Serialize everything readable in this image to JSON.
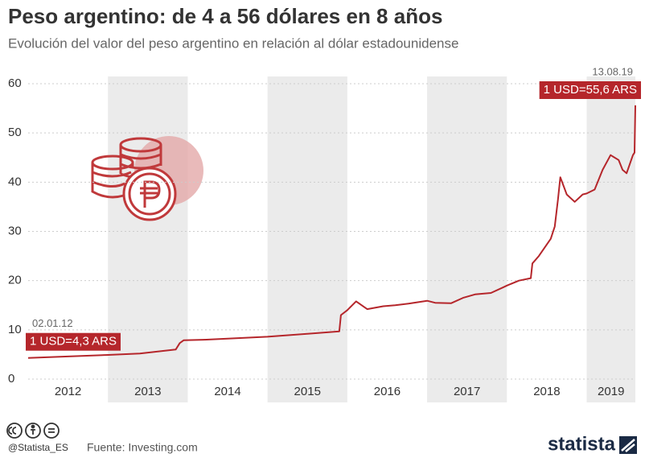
{
  "title": "Peso argentino: de 4 a 56 dólares en 8 años",
  "subtitle": "Evolución del valor del peso argentino en relación al dólar estadounidense",
  "credit": "@Statista_ES",
  "source": "Fuente: Investing.com",
  "brand": "statista",
  "chart_data": {
    "type": "line",
    "color": "#b5262b",
    "grid": true,
    "x": [
      2012.0,
      2012.5,
      2013.0,
      2013.4,
      2013.85,
      2013.9,
      2013.95,
      2014.2,
      2014.5,
      2015.0,
      2015.5,
      2015.9,
      2015.92,
      2016.0,
      2016.11,
      2016.25,
      2016.45,
      2016.6,
      2016.8,
      2017.0,
      2017.1,
      2017.3,
      2017.45,
      2017.6,
      2017.8,
      2017.95,
      2018.0,
      2018.15,
      2018.3,
      2018.32,
      2018.4,
      2018.55,
      2018.6,
      2018.64,
      2018.67,
      2018.75,
      2018.85,
      2018.95,
      2019.0,
      2019.1,
      2019.2,
      2019.3,
      2019.4,
      2019.45,
      2019.5,
      2019.58,
      2019.6,
      2019.61
    ],
    "values": [
      4.3,
      4.6,
      4.9,
      5.2,
      6.0,
      7.3,
      7.9,
      8.0,
      8.2,
      8.6,
      9.2,
      9.7,
      13.0,
      14.0,
      15.8,
      14.2,
      14.8,
      15.0,
      15.4,
      15.9,
      15.5,
      15.4,
      16.5,
      17.2,
      17.5,
      18.6,
      19.0,
      20.0,
      20.5,
      23.5,
      25.0,
      28.5,
      31.0,
      36.5,
      41.0,
      37.5,
      36.0,
      37.5,
      37.7,
      38.5,
      42.5,
      45.5,
      44.5,
      42.5,
      41.8,
      45.5,
      46.0,
      55.6
    ],
    "xlim": [
      2012.0,
      2019.61
    ],
    "xticks": [
      2012,
      2013,
      2014,
      2015,
      2016,
      2017,
      2018,
      2019
    ],
    "ylim": [
      0,
      60
    ],
    "yticks": [
      0,
      10,
      20,
      30,
      40,
      50,
      60
    ],
    "annotations": [
      {
        "date": "02.01.12",
        "label": "1 USD=4,3 ARS"
      },
      {
        "date": "13.08.19",
        "label": "1 USD=55,6 ARS"
      }
    ]
  }
}
